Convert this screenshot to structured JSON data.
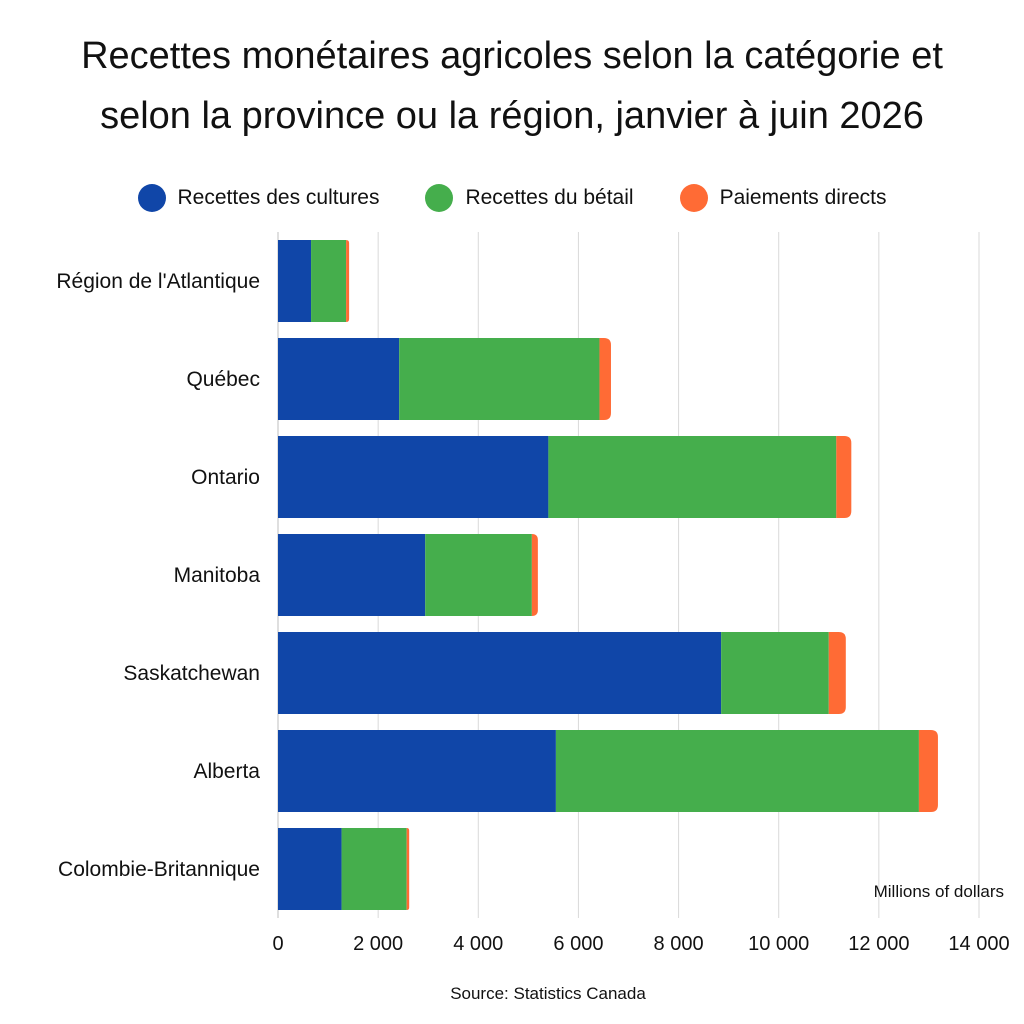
{
  "title_lines": [
    "Recettes monétaires agricoles selon la catégorie et",
    "selon la province ou la région, janvier à juin 2026"
  ],
  "source": "Source: Statistics Canada",
  "unit": "Millions of dollars",
  "colors": {
    "crops": "#1046a8",
    "livestock": "#45ae4c",
    "payments": "#ff6b35",
    "grid": "#d9d9d9"
  },
  "chart_data": {
    "type": "bar",
    "orientation": "horizontal",
    "stacked": true,
    "title": "Recettes monétaires agricoles selon la catégorie et selon la province ou la région, janvier à juin 2026",
    "xlabel": "Millions of dollars",
    "ylabel": "",
    "xlim": [
      0,
      14000
    ],
    "xticks": [
      0,
      2000,
      4000,
      6000,
      8000,
      10000,
      12000,
      14000
    ],
    "xtick_labels": [
      "0",
      "2 000",
      "4 000",
      "6 000",
      "8 000",
      "10 000",
      "12 000",
      "14 000"
    ],
    "grid": true,
    "legend_position": "top",
    "categories": [
      "Région de l'Atlantique",
      "Québec",
      "Ontario",
      "Manitoba",
      "Saskatchewan",
      "Alberta",
      "Colombie-Britannique"
    ],
    "series": [
      {
        "name": "Recettes des cultures",
        "values": [
          660,
          2420,
          5400,
          2940,
          8850,
          5550,
          1270
        ]
      },
      {
        "name": "Recettes du bétail",
        "values": [
          700,
          4000,
          5750,
          2130,
          2150,
          7250,
          1300
        ]
      },
      {
        "name": "Paiements directs",
        "values": [
          60,
          230,
          300,
          120,
          340,
          380,
          50
        ]
      }
    ]
  }
}
